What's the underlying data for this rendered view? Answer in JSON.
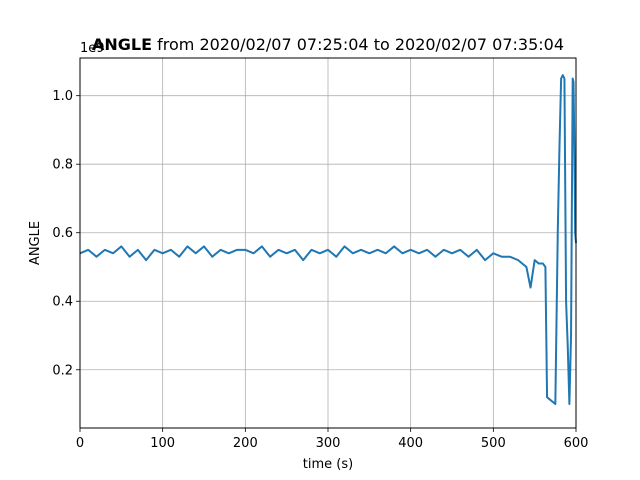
{
  "chart_data": {
    "type": "line",
    "title_bold": "ANGLE",
    "title_rest": " from 2020/02/07 07:25:04 to 2020/02/07 07:35:04",
    "xlabel": "time (s)",
    "ylabel": "ANGLE",
    "offset_label": "1e9",
    "xlim": [
      0,
      600
    ],
    "ylim": [
      0.03,
      1.11
    ],
    "x_ticks": [
      0,
      100,
      200,
      300,
      400,
      500,
      600
    ],
    "y_ticks": [
      0.2,
      0.4,
      0.6,
      0.8,
      1.0
    ],
    "x_tick_labels": [
      "0",
      "100",
      "200",
      "300",
      "400",
      "500",
      "600"
    ],
    "y_tick_labels": [
      "0.2",
      "0.4",
      "0.6",
      "0.8",
      "1.0"
    ],
    "grid": true,
    "color": "#1f77b4",
    "series": [
      {
        "x": [
          0,
          10,
          20,
          30,
          40,
          50,
          60,
          70,
          80,
          90,
          100,
          110,
          120,
          130,
          140,
          150,
          160,
          170,
          180,
          190,
          200,
          210,
          220,
          230,
          240,
          250,
          260,
          270,
          280,
          290,
          300,
          310,
          320,
          330,
          340,
          350,
          360,
          370,
          380,
          390,
          400,
          410,
          420,
          430,
          440,
          450,
          460,
          470,
          480,
          490,
          500,
          510,
          520,
          530,
          540,
          545,
          550,
          555,
          560,
          563,
          565,
          570,
          575,
          578,
          580,
          582,
          584,
          586,
          588,
          590,
          592,
          594,
          596,
          597,
          598,
          599,
          600
        ],
        "y": [
          0.54,
          0.55,
          0.53,
          0.55,
          0.54,
          0.56,
          0.53,
          0.55,
          0.52,
          0.55,
          0.54,
          0.55,
          0.53,
          0.56,
          0.54,
          0.56,
          0.53,
          0.55,
          0.54,
          0.55,
          0.55,
          0.54,
          0.56,
          0.53,
          0.55,
          0.54,
          0.55,
          0.52,
          0.55,
          0.54,
          0.55,
          0.53,
          0.56,
          0.54,
          0.55,
          0.54,
          0.55,
          0.54,
          0.56,
          0.54,
          0.55,
          0.54,
          0.55,
          0.53,
          0.55,
          0.54,
          0.55,
          0.53,
          0.55,
          0.52,
          0.54,
          0.53,
          0.53,
          0.52,
          0.5,
          0.44,
          0.52,
          0.51,
          0.51,
          0.5,
          0.12,
          0.11,
          0.1,
          0.61,
          0.85,
          1.05,
          1.06,
          1.05,
          0.4,
          0.27,
          0.1,
          0.3,
          1.05,
          1.04,
          0.85,
          0.6,
          0.57
        ]
      }
    ]
  }
}
